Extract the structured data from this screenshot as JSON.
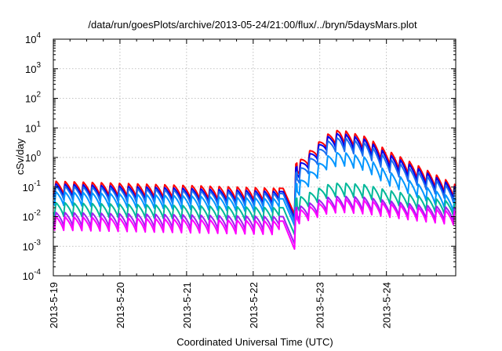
{
  "chart_data": {
    "type": "line",
    "title": "/data/run/goesPlots/archive/2013-05-24/21:00/flux/../bryn/5daysMars.plot",
    "xlabel": "Coordinated Universal Time (UTC)",
    "ylabel": "cSv/day",
    "yscale": "log",
    "ylim": [
      0.0001,
      10000
    ],
    "y_ticks": [
      {
        "base": "10",
        "exp": "-4",
        "value": 0.0001
      },
      {
        "base": "10",
        "exp": "-3",
        "value": 0.001
      },
      {
        "base": "10",
        "exp": "-2",
        "value": 0.01
      },
      {
        "base": "10",
        "exp": "-1",
        "value": 0.1
      },
      {
        "base": "10",
        "exp": "0",
        "value": 1
      },
      {
        "base": "10",
        "exp": "1",
        "value": 10
      },
      {
        "base": "10",
        "exp": "2",
        "value": 100
      },
      {
        "base": "10",
        "exp": "3",
        "value": 1000
      },
      {
        "base": "10",
        "exp": "4",
        "value": 10000
      }
    ],
    "xlim_days": [
      0,
      6.04
    ],
    "x_ticks": [
      {
        "label": "2013-5-19",
        "day": 0
      },
      {
        "label": "2013-5-20",
        "day": 1
      },
      {
        "label": "2013-5-21",
        "day": 2
      },
      {
        "label": "2013-5-22",
        "day": 3
      },
      {
        "label": "2013-5-23",
        "day": 4
      },
      {
        "label": "2013-5-24",
        "day": 5
      }
    ],
    "grid": true,
    "spike_period_days": 0.136,
    "onset_day": 3.64,
    "series": [
      {
        "name": "red",
        "color": "#ff0000",
        "points": [
          [
            0.0,
            0.16
          ],
          [
            3.45,
            0.09
          ],
          [
            3.62,
            0.012
          ],
          [
            3.64,
            0.6
          ],
          [
            4.1,
            6.0
          ],
          [
            4.3,
            9.0
          ],
          [
            4.7,
            5.0
          ],
          [
            5.0,
            1.8
          ],
          [
            5.5,
            0.5
          ],
          [
            6.04,
            0.12
          ]
        ]
      },
      {
        "name": "blue-dark",
        "color": "#0000ee",
        "points": [
          [
            0.0,
            0.13
          ],
          [
            3.45,
            0.07
          ],
          [
            3.62,
            0.009
          ],
          [
            3.64,
            0.45
          ],
          [
            4.1,
            5.0
          ],
          [
            4.3,
            7.0
          ],
          [
            4.7,
            4.0
          ],
          [
            5.0,
            1.4
          ],
          [
            5.5,
            0.4
          ],
          [
            6.04,
            0.1
          ]
        ]
      },
      {
        "name": "blue-mid",
        "color": "#1a6ef0",
        "points": [
          [
            0.0,
            0.11
          ],
          [
            3.45,
            0.06
          ],
          [
            3.62,
            0.007
          ],
          [
            3.64,
            0.3
          ],
          [
            4.1,
            3.5
          ],
          [
            4.3,
            5.0
          ],
          [
            4.7,
            3.0
          ],
          [
            5.0,
            1.0
          ],
          [
            5.5,
            0.3
          ],
          [
            6.04,
            0.08
          ]
        ]
      },
      {
        "name": "blue-light",
        "color": "#0096ff",
        "points": [
          [
            0.0,
            0.07
          ],
          [
            3.45,
            0.04
          ],
          [
            3.62,
            0.005
          ],
          [
            3.64,
            0.12
          ],
          [
            4.1,
            1.1
          ],
          [
            4.3,
            1.6
          ],
          [
            4.7,
            1.0
          ],
          [
            5.0,
            0.35
          ],
          [
            5.5,
            0.12
          ],
          [
            6.04,
            0.04
          ]
        ]
      },
      {
        "name": "teal",
        "color": "#00b89a",
        "points": [
          [
            0.0,
            0.03
          ],
          [
            3.45,
            0.02
          ],
          [
            3.62,
            0.0025
          ],
          [
            3.64,
            0.04
          ],
          [
            4.1,
            0.12
          ],
          [
            4.3,
            0.14
          ],
          [
            4.7,
            0.12
          ],
          [
            5.0,
            0.08
          ],
          [
            5.5,
            0.05
          ],
          [
            6.04,
            0.03
          ]
        ]
      },
      {
        "name": "purple",
        "color": "#a020f0",
        "points": [
          [
            0.0,
            0.014
          ],
          [
            3.45,
            0.01
          ],
          [
            3.62,
            0.0012
          ],
          [
            3.64,
            0.02
          ],
          [
            4.1,
            0.045
          ],
          [
            4.3,
            0.05
          ],
          [
            4.7,
            0.045
          ],
          [
            5.0,
            0.035
          ],
          [
            5.5,
            0.025
          ],
          [
            6.04,
            0.02
          ]
        ]
      },
      {
        "name": "magenta",
        "color": "#ff00ff",
        "points": [
          [
            0.0,
            0.01
          ],
          [
            3.45,
            0.007
          ],
          [
            3.62,
            0.0008
          ],
          [
            3.64,
            0.015
          ],
          [
            4.1,
            0.035
          ],
          [
            4.3,
            0.04
          ],
          [
            4.7,
            0.035
          ],
          [
            5.0,
            0.028
          ],
          [
            5.5,
            0.02
          ],
          [
            6.04,
            0.015
          ]
        ]
      }
    ]
  }
}
